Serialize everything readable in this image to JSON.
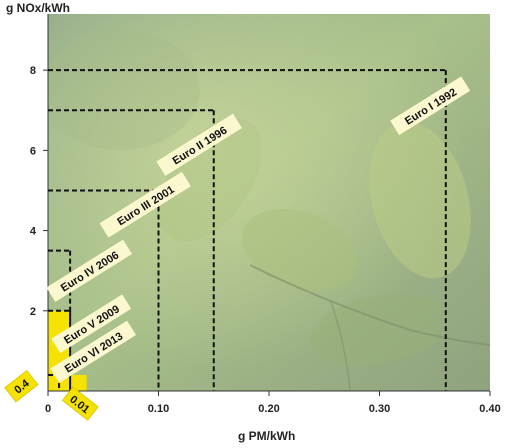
{
  "chart_data": {
    "type": "area",
    "ylabel": "g NOx/kWh",
    "xlabel": "g PM/kWh",
    "xlim": [
      0,
      0.4
    ],
    "ylim": [
      0,
      9.4
    ],
    "xticks": [
      0,
      0.1,
      0.2,
      0.3,
      0.4
    ],
    "xtick_labels": [
      "0",
      "0.10",
      "0.20",
      "0.30",
      "0.40"
    ],
    "yticks": [
      2,
      4,
      6,
      8
    ],
    "ytick_labels": [
      "2",
      "4",
      "6",
      "8"
    ],
    "grid": false,
    "background": "photo of green leaves",
    "standards": [
      {
        "label": "Euro I 1992",
        "pm": 0.36,
        "nox": 8.0
      },
      {
        "label": "Euro II 1996",
        "pm": 0.15,
        "nox": 7.0
      },
      {
        "label": "Euro III 2001",
        "pm": 0.1,
        "nox": 5.0
      },
      {
        "label": "Euro IV 2006",
        "pm": 0.02,
        "nox": 3.5
      },
      {
        "label": "Euro V 2009",
        "pm": 0.02,
        "nox": 2.0
      },
      {
        "label": "Euro VI 2013",
        "pm": 0.01,
        "nox": 0.4
      }
    ],
    "callouts": [
      "0.4",
      "0.01"
    ]
  },
  "colors": {
    "limit_line": "#111111",
    "label_bg": "#fbf7cf",
    "highlight": "#f5e200",
    "background_top": "#8fa68a",
    "background_bottom": "#a9bf84"
  }
}
